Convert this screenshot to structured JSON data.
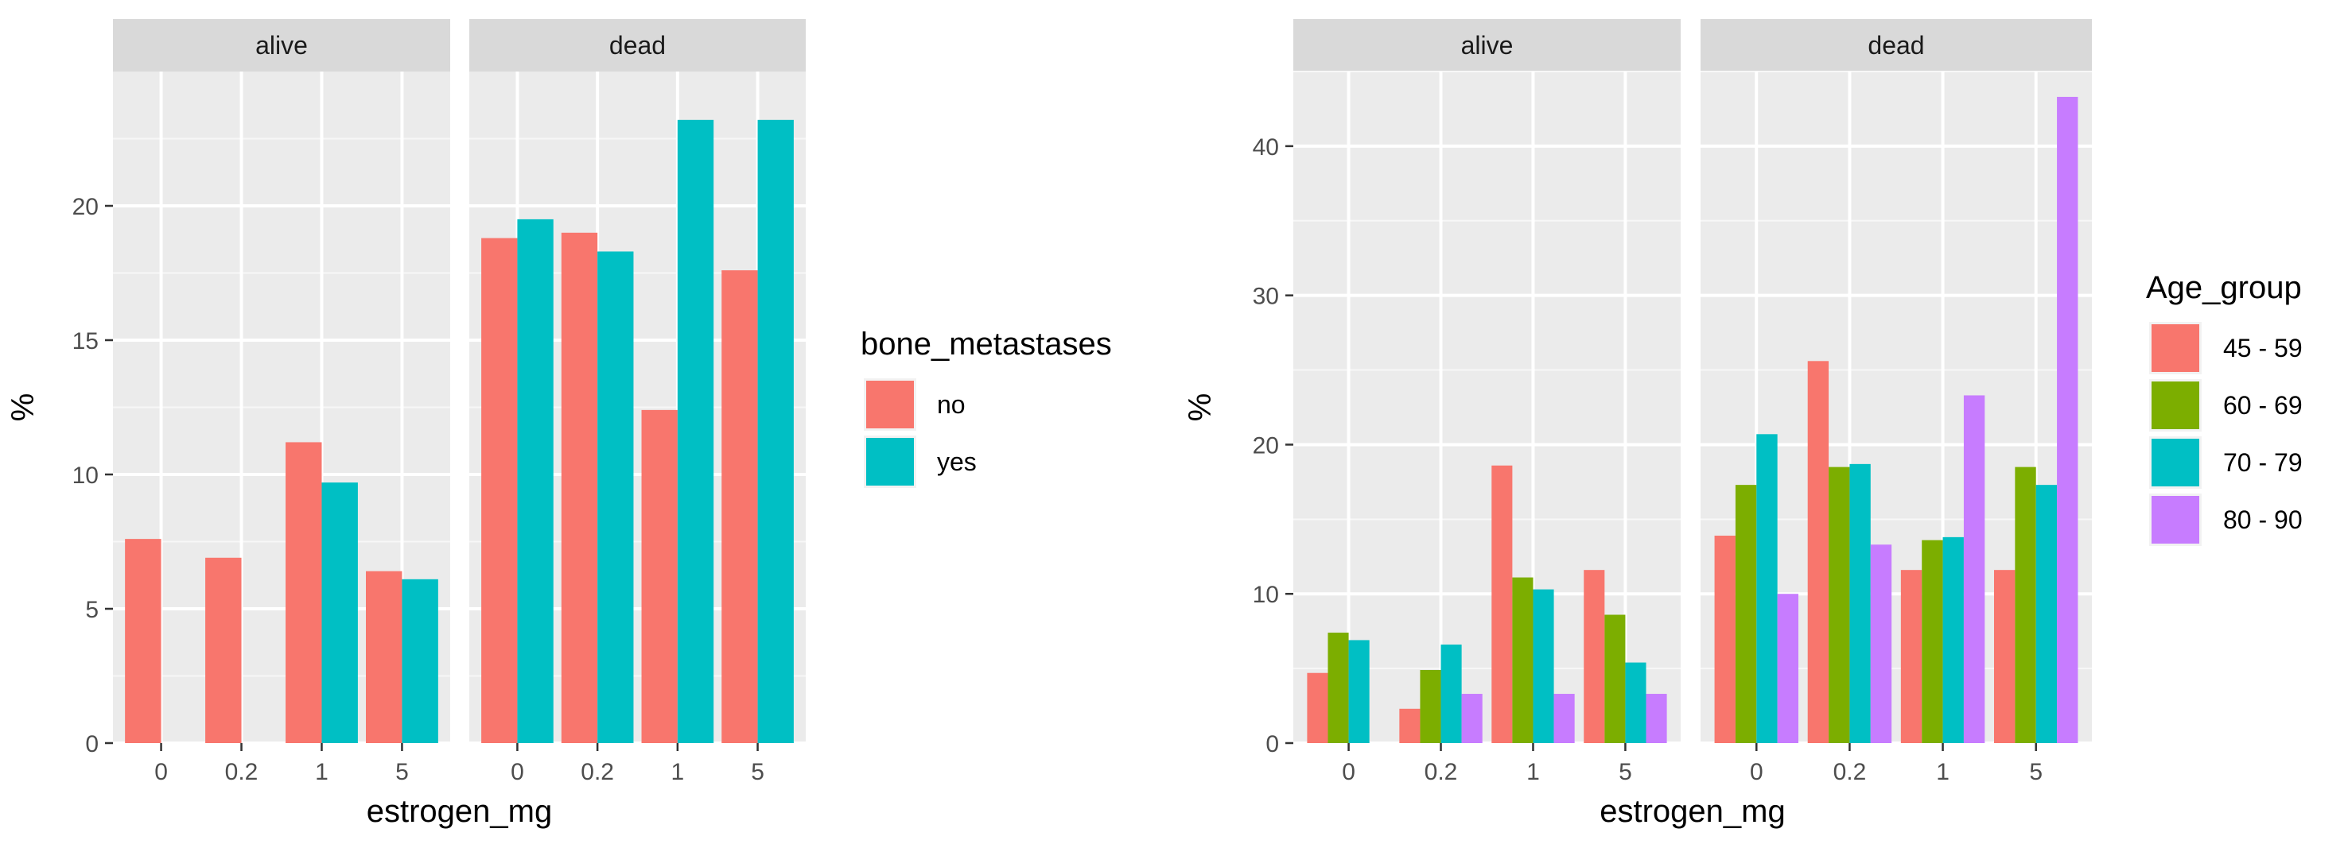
{
  "chart_data": [
    {
      "type": "bar",
      "title": "",
      "xlabel": "estrogen_mg",
      "ylabel": "%",
      "ylim": [
        0,
        25
      ],
      "yticks": [
        0,
        5,
        10,
        15,
        20
      ],
      "grid": true,
      "legend": {
        "title": "bone_metastases",
        "placement": "right"
      },
      "categories": [
        "0",
        "0.2",
        "1",
        "5"
      ],
      "facets": [
        {
          "label": "alive",
          "series": [
            {
              "name": "no",
              "color": "#F8766D",
              "values": [
                7.6,
                6.9,
                11.2,
                6.4
              ]
            },
            {
              "name": "yes",
              "color": "#00BFC4",
              "values": [
                null,
                null,
                9.7,
                6.1
              ]
            }
          ]
        },
        {
          "label": "dead",
          "series": [
            {
              "name": "no",
              "color": "#F8766D",
              "values": [
                18.8,
                19.0,
                12.4,
                17.6
              ]
            },
            {
              "name": "yes",
              "color": "#00BFC4",
              "values": [
                19.5,
                18.3,
                23.2,
                23.2
              ]
            }
          ]
        }
      ]
    },
    {
      "type": "bar",
      "title": "",
      "xlabel": "estrogen_mg",
      "ylabel": "%",
      "ylim": [
        0,
        45
      ],
      "yticks": [
        0,
        10,
        20,
        30,
        40
      ],
      "grid": true,
      "legend": {
        "title": "Age_group",
        "placement": "right"
      },
      "categories": [
        "0",
        "0.2",
        "1",
        "5"
      ],
      "facets": [
        {
          "label": "alive",
          "series": [
            {
              "name": "45 - 59",
              "color": "#F8766D",
              "values": [
                4.7,
                2.3,
                18.6,
                11.6
              ]
            },
            {
              "name": "60 - 69",
              "color": "#7CAE00",
              "values": [
                7.4,
                4.9,
                11.1,
                8.6
              ]
            },
            {
              "name": "70 - 79",
              "color": "#00BFC4",
              "values": [
                6.9,
                6.6,
                10.3,
                5.4
              ]
            },
            {
              "name": "80 - 90",
              "color": "#C77CFF",
              "values": [
                null,
                3.3,
                3.3,
                3.3
              ]
            }
          ]
        },
        {
          "label": "dead",
          "series": [
            {
              "name": "45 - 59",
              "color": "#F8766D",
              "values": [
                13.9,
                25.6,
                11.6,
                11.6
              ]
            },
            {
              "name": "60 - 69",
              "color": "#7CAE00",
              "values": [
                17.3,
                18.5,
                13.6,
                18.5
              ]
            },
            {
              "name": "70 - 79",
              "color": "#00BFC4",
              "values": [
                20.7,
                18.7,
                13.8,
                17.3
              ]
            },
            {
              "name": "80 - 90",
              "color": "#C77CFF",
              "values": [
                10.0,
                13.3,
                23.3,
                43.3
              ]
            }
          ]
        }
      ]
    }
  ]
}
